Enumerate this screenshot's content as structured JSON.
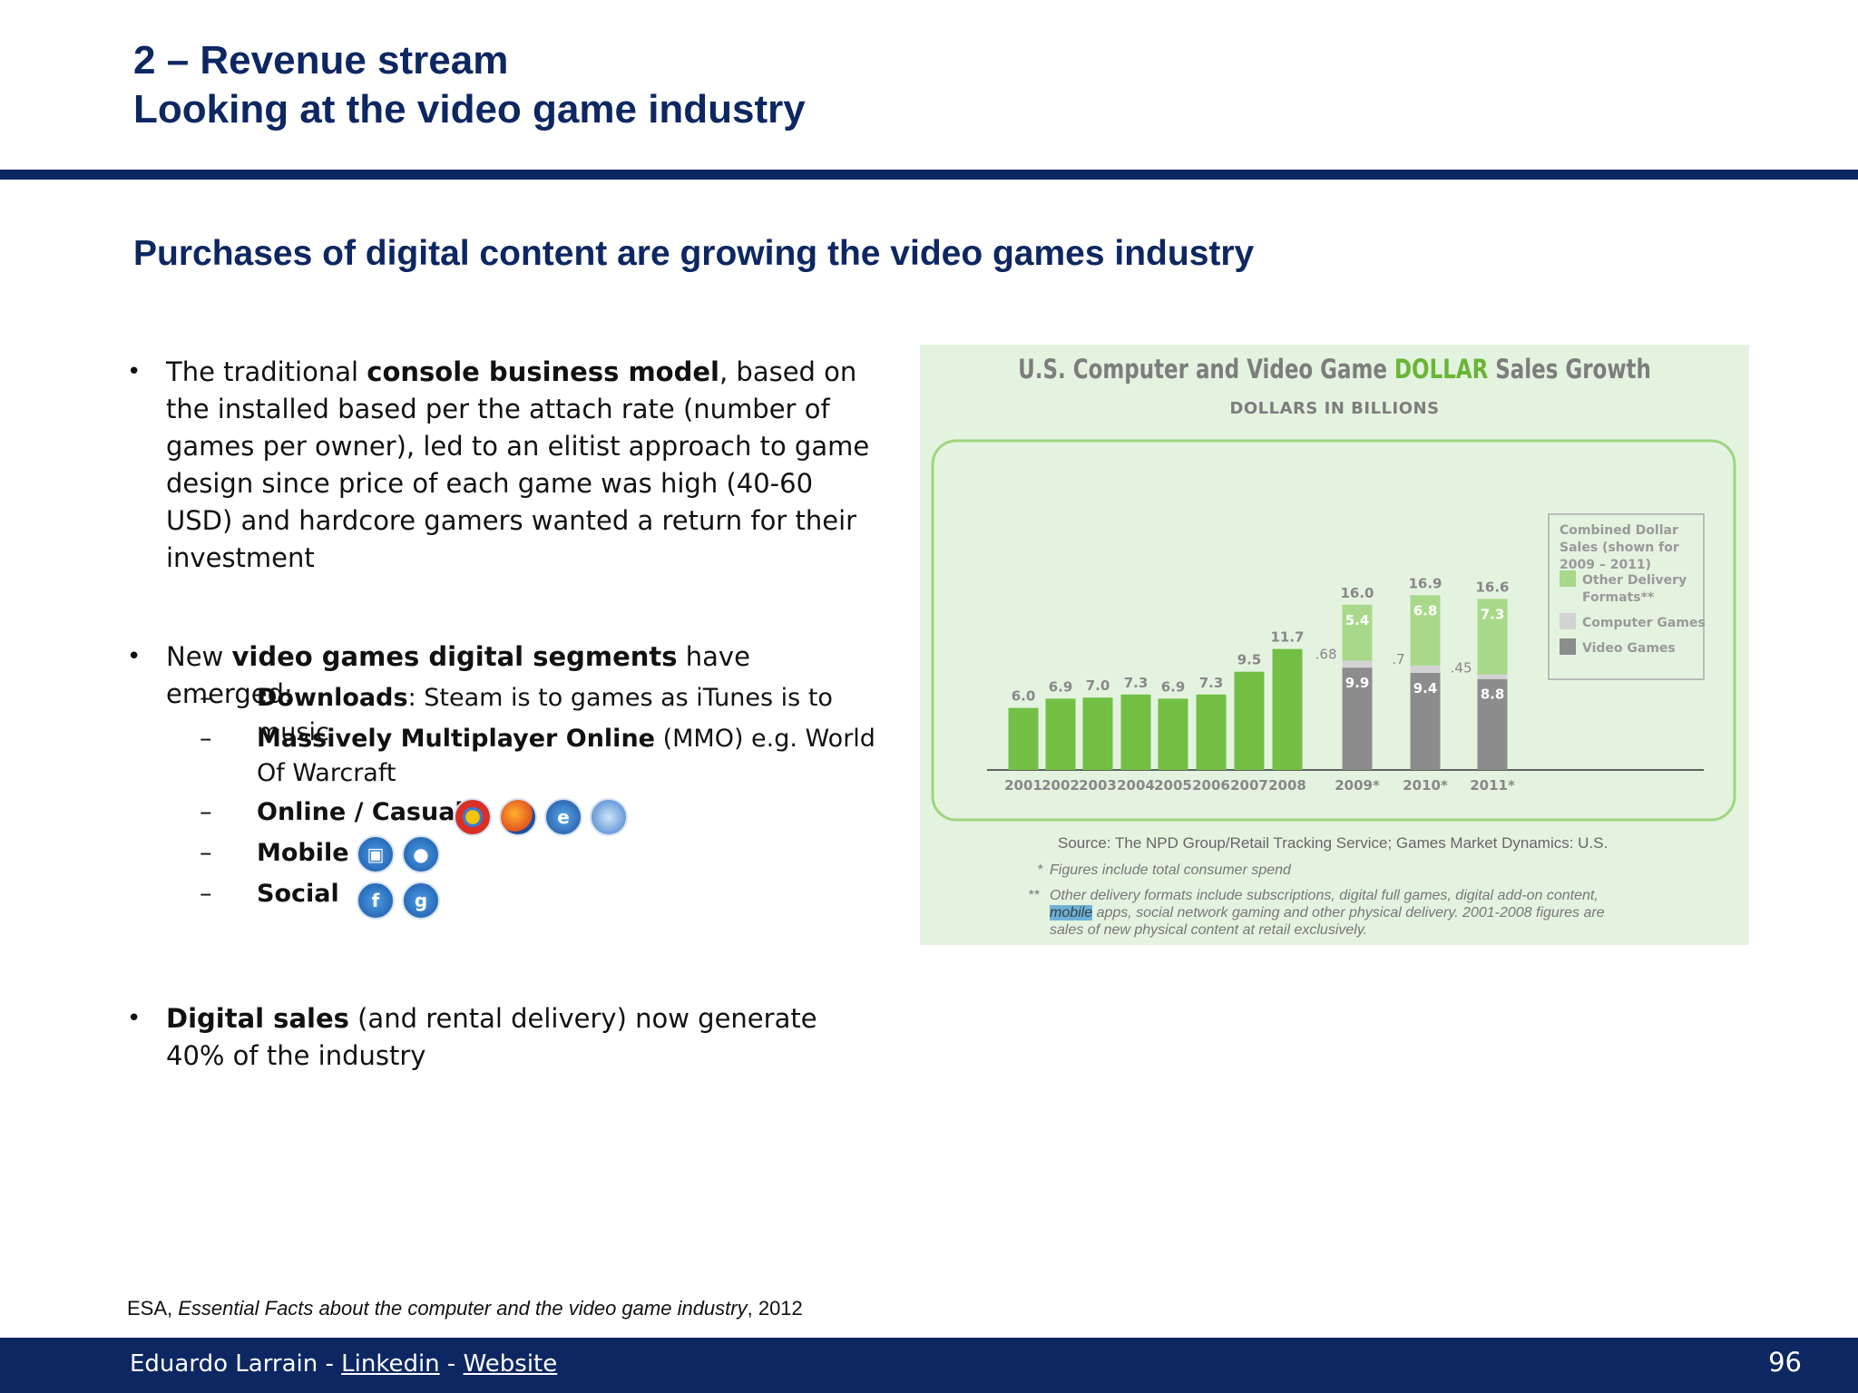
{
  "header": {
    "line1": "2 – Revenue stream",
    "line2": "Looking at the video game industry"
  },
  "subtitle": "Purchases of digital content are growing the video games industry",
  "bullets": {
    "b1_pre": "The traditional ",
    "b1_bold": "console business model",
    "b1_post": ", based on the installed based per the attach rate (number of games per owner), led to an elitist approach to game design since price of each game was high (40-60 USD) and hardcore gamers wanted a return for their investment",
    "b2_pre": "New ",
    "b2_bold": "video games digital segments",
    "b2_post": " have emerged:",
    "sub1_bold": "Downloads",
    "sub1_text": ": Steam is to games as iTunes is to music",
    "sub2_bold": "Massively Multiplayer Online",
    "sub2_text": " (MMO) e.g. World Of Warcraft",
    "sub3_bold": "Online / Casual",
    "sub4_bold": "Mobile",
    "sub5_bold": "Social",
    "b3_bold": "Digital sales",
    "b3_text": " (and rental delivery) now generate 40% of the industry"
  },
  "icons": {
    "online": [
      "chrome-icon",
      "firefox-icon",
      "internet-explorer-icon",
      "safari-icon"
    ],
    "mobile": [
      "android-icon",
      "apple-icon"
    ],
    "social": [
      "facebook-icon",
      "google-plus-icon"
    ]
  },
  "chart_data": {
    "type": "bar",
    "title_pre": "U.S. Computer and Video Game ",
    "title_accent": "DOLLAR",
    "title_post": " Sales Growth",
    "subtitle": "DOLLARS IN BILLIONS",
    "categories": [
      "2001",
      "2002",
      "2003",
      "2004",
      "2005",
      "2006",
      "2007",
      "2008",
      "2009*",
      "2010*",
      "2011*"
    ],
    "totals": [
      6.0,
      6.9,
      7.0,
      7.3,
      6.9,
      7.3,
      9.5,
      11.7,
      16.0,
      16.9,
      16.6
    ],
    "total_labels": [
      "6.0",
      "6.9",
      "7.0",
      "7.3",
      "6.9",
      "7.3",
      "9.5",
      "11.7",
      "16.0",
      "16.9",
      "16.6"
    ],
    "stacked": [
      {
        "category": "2009*",
        "video_games": 9.9,
        "computer_games": 0.68,
        "other_delivery": 5.4,
        "labels": [
          "9.9",
          ".68",
          "5.4"
        ]
      },
      {
        "category": "2010*",
        "video_games": 9.4,
        "computer_games": 0.7,
        "other_delivery": 6.8,
        "labels": [
          "9.4",
          ".7",
          "6.8"
        ]
      },
      {
        "category": "2011*",
        "video_games": 8.8,
        "computer_games": 0.45,
        "other_delivery": 7.3,
        "labels": [
          "8.8",
          ".45",
          "7.3"
        ]
      }
    ],
    "legend": {
      "header": [
        "Combined Dollar",
        "Sales (shown for",
        "2009 – 2011)"
      ],
      "items": [
        {
          "name": "Other Delivery Formats**",
          "lines": [
            "Other Delivery",
            "Formats**"
          ],
          "color": "#a8d98a"
        },
        {
          "name": "Computer Games",
          "lines": [
            "Computer Games"
          ],
          "color": "#d3d3d3"
        },
        {
          "name": "Video Games",
          "lines": [
            "Video Games"
          ],
          "color": "#8c8c8c"
        }
      ]
    },
    "colors": {
      "bar": "#72bf44",
      "other": "#a8d98a",
      "computer": "#d3d3d3",
      "video": "#8c8c8c"
    },
    "ylim": [
      0,
      18
    ],
    "source": "Source: The NPD Group/Retail Tracking Service; Games Market Dynamics: U.S.",
    "note1_mark": "*",
    "note1": "Figures include total consumer spend",
    "note2_mark": "**",
    "note2_line1": "Other delivery formats include subscriptions, digital full games, digital add-on content,",
    "note2_hl": "mobile",
    "note2_line2": " apps, social network gaming and other physical delivery. 2001-2008 figures are",
    "note2_line3": "sales of new physical content at retail exclusively."
  },
  "citation": {
    "pre": "ESA, ",
    "italic": "Essential Facts about the computer and the video game industry",
    "post": ", 2012"
  },
  "footer": {
    "author": "Eduardo Larrain - ",
    "link1": "Linkedin",
    "sep": " - ",
    "link2": "Website",
    "page": "96"
  }
}
